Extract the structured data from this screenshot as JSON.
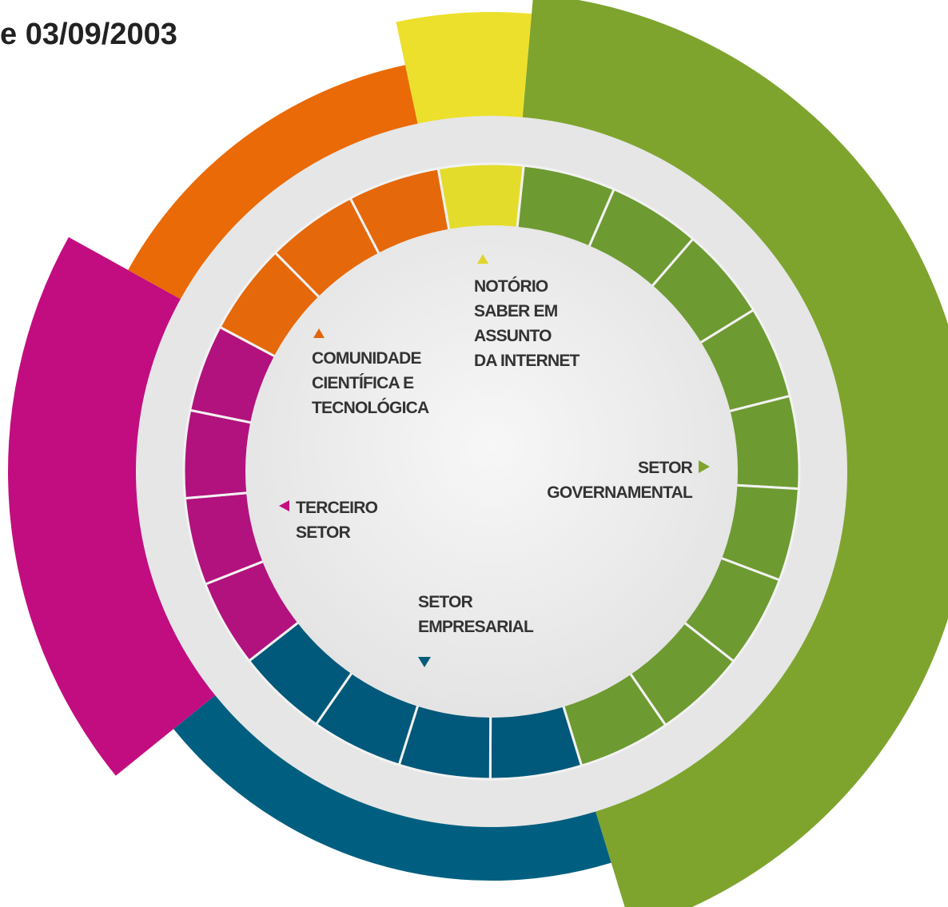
{
  "header": {
    "title": "e 03/09/2003"
  },
  "labels": [
    {
      "lines": [
        "NOTÓRIO",
        "SABER EM",
        "ASSUNTO",
        "DA INTERNET"
      ]
    },
    {
      "lines": [
        "COMUNIDADE",
        "CIENTÍFICA E",
        "TECNOLÓGICA"
      ]
    },
    {
      "lines": [
        "SETOR",
        "GOVERNAMENTAL"
      ]
    },
    {
      "lines": [
        "TERCEIRO",
        "SETOR"
      ]
    },
    {
      "lines": [
        "SETOR",
        "EMPRESARIAL"
      ]
    }
  ]
}
